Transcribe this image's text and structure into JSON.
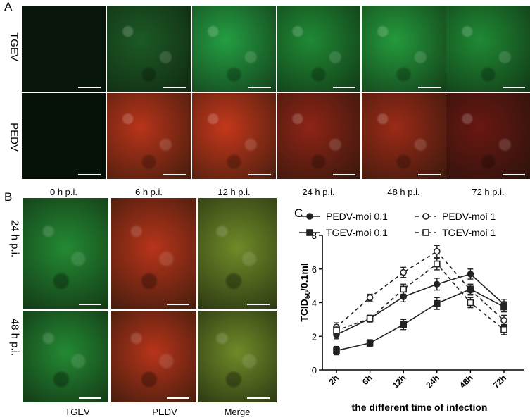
{
  "panels": {
    "A": "A",
    "B": "B",
    "C": "C"
  },
  "panelA": {
    "rows": [
      "TGEV",
      "PEDV"
    ],
    "timepoints": [
      "0 h p.i.",
      "6 h p.i.",
      "12 h p.i.",
      "24 h p.i.",
      "48 h p.i.",
      "72 h p.i."
    ],
    "green_colors": [
      "#07150a",
      "#1c5a25",
      "#249e42",
      "#1f8a34",
      "#249a3c",
      "#1f8a34"
    ],
    "red_colors": [
      "#061208",
      "#b8341a",
      "#c4371b",
      "#8e2416",
      "#9c2a17",
      "#6a1712"
    ]
  },
  "panelB": {
    "rows": [
      "24 h p.i.",
      "48 h p.i."
    ],
    "columns": [
      "TGEV",
      "PEDV",
      "Merge"
    ],
    "colors": {
      "green": "#238a33",
      "red": "#b8341a",
      "merge": "#6f8a28"
    }
  },
  "chart_data": {
    "type": "line",
    "xlabel": "the different time of infection",
    "ylabel": "TCID50/0.1ml",
    "categories": [
      "2h",
      "6h",
      "12h",
      "24h",
      "48h",
      "72h"
    ],
    "ylim": [
      0,
      8
    ],
    "yticks": [
      "0",
      "2",
      "4",
      "6",
      "8"
    ],
    "legend": [
      "PEDV-moi 0.1",
      "PEDV-moi 1",
      "TGEV-moi 0.1",
      "TGEV-moi 1"
    ],
    "series": [
      {
        "name": "PEDV-moi 0.1",
        "marker": "circle-filled",
        "dash": "solid",
        "values": [
          2.1,
          3.05,
          4.35,
          5.1,
          5.7,
          3.9
        ]
      },
      {
        "name": "PEDV-moi 1",
        "marker": "circle-open",
        "dash": "dashed",
        "values": [
          2.55,
          4.3,
          5.8,
          7.05,
          4.75,
          2.95
        ]
      },
      {
        "name": "TGEV-moi 0.1",
        "marker": "square-filled",
        "dash": "solid",
        "values": [
          1.15,
          1.6,
          2.7,
          3.95,
          4.8,
          3.75
        ]
      },
      {
        "name": "TGEV-moi 1",
        "marker": "square-open",
        "dash": "dashed",
        "values": [
          2.35,
          3.05,
          4.8,
          6.3,
          4.0,
          2.4
        ]
      }
    ]
  }
}
